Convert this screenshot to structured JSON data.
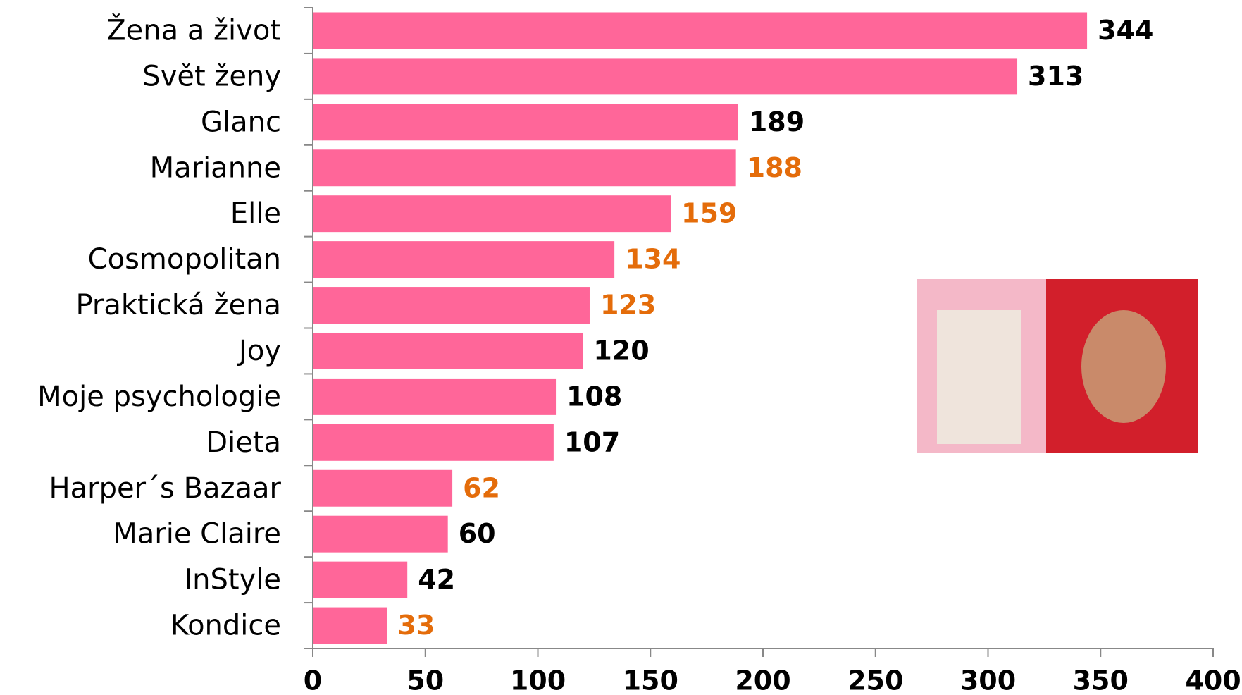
{
  "chart_data": {
    "type": "bar",
    "orientation": "horizontal",
    "categories": [
      "Žena a život",
      "Svět ženy",
      "Glanc",
      "Marianne",
      "Elle",
      "Cosmopolitan",
      "Praktická žena",
      "Joy",
      "Moje psychologie",
      "Dieta",
      "Harper´s Bazaar",
      "Marie Claire",
      "InStyle",
      "Kondice"
    ],
    "values": [
      344,
      313,
      189,
      188,
      159,
      134,
      123,
      120,
      108,
      107,
      62,
      60,
      42,
      33
    ],
    "color": "#ff6699",
    "value_label_colors": [
      "#000000",
      "#000000",
      "#000000",
      "#e46c0a",
      "#e46c0a",
      "#e46c0a",
      "#e46c0a",
      "#000000",
      "#000000",
      "#000000",
      "#e46c0a",
      "#000000",
      "#000000",
      "#e46c0a"
    ],
    "xlim": [
      0,
      400
    ],
    "xticks": [
      0,
      50,
      100,
      150,
      200,
      250,
      300,
      350,
      400
    ],
    "grid": false
  }
}
